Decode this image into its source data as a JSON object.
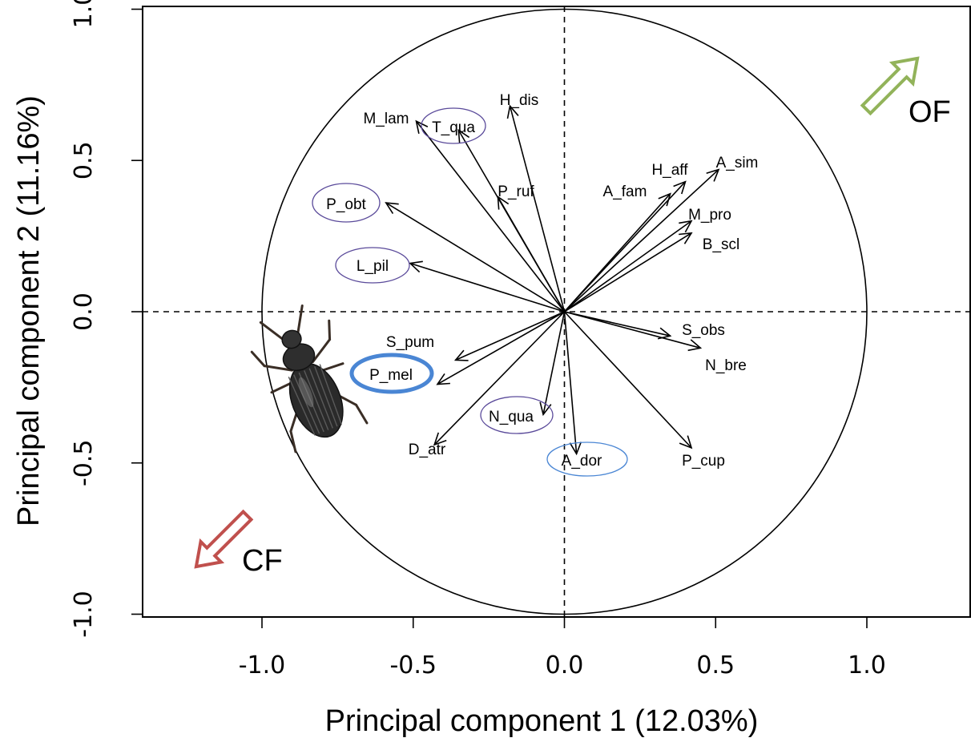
{
  "chart_data": {
    "type": "scatter",
    "subtype": "pca-correlation-circle",
    "xlabel": "Principal component 1 (12.03%)",
    "ylabel": "Principal component 2 (11.16%)",
    "xlim": [
      -1.4,
      1.4
    ],
    "ylim": [
      -1.08,
      1.08
    ],
    "x_ticks": [
      -1.0,
      -0.5,
      0.0,
      0.5,
      1.0
    ],
    "x_tick_labels": [
      "-1.0",
      "-0.5",
      "0.0",
      "0.5",
      "1.0"
    ],
    "y_ticks": [
      -1.0,
      -0.5,
      0.0,
      0.5,
      1.0
    ],
    "y_tick_labels": [
      "-1.0",
      "-0.5",
      "0.0",
      "0.5",
      "1.0"
    ],
    "unit_circle": true,
    "zero_lines": true,
    "vectors": [
      {
        "label": "M_lam",
        "x": -0.49,
        "y": 0.63,
        "circled": null
      },
      {
        "label": "T_qua",
        "x": -0.35,
        "y": 0.6,
        "circled": "purple"
      },
      {
        "label": "H_dis",
        "x": -0.18,
        "y": 0.68,
        "circled": null
      },
      {
        "label": "P_ruf",
        "x": -0.22,
        "y": 0.38,
        "circled": null
      },
      {
        "label": "P_obt",
        "x": -0.59,
        "y": 0.36,
        "circled": "purple"
      },
      {
        "label": "L_pil",
        "x": -0.51,
        "y": 0.16,
        "circled": "purple"
      },
      {
        "label": "S_pum",
        "x": -0.36,
        "y": -0.16,
        "circled": null
      },
      {
        "label": "P_mel",
        "x": -0.42,
        "y": -0.24,
        "circled": "blue-bold"
      },
      {
        "label": "D_atr",
        "x": -0.43,
        "y": -0.44,
        "circled": null
      },
      {
        "label": "N_qua",
        "x": -0.07,
        "y": -0.34,
        "circled": "purple"
      },
      {
        "label": "A_dor",
        "x": 0.04,
        "y": -0.47,
        "circled": "blue"
      },
      {
        "label": "P_cup",
        "x": 0.42,
        "y": -0.45,
        "circled": null
      },
      {
        "label": "S_obs",
        "x": 0.35,
        "y": -0.08,
        "circled": null
      },
      {
        "label": "N_bre",
        "x": 0.45,
        "y": -0.12,
        "circled": null
      },
      {
        "label": "B_scl",
        "x": 0.42,
        "y": 0.26,
        "circled": null
      },
      {
        "label": "M_pro",
        "x": 0.42,
        "y": 0.3,
        "circled": null
      },
      {
        "label": "A_fam",
        "x": 0.35,
        "y": 0.39,
        "circled": null
      },
      {
        "label": "H_aff",
        "x": 0.4,
        "y": 0.43,
        "circled": null
      },
      {
        "label": "A_sim",
        "x": 0.51,
        "y": 0.47,
        "circled": null
      }
    ],
    "annotations": [
      {
        "text": "OF",
        "direction": "up-right",
        "color": "#92b35a"
      },
      {
        "text": "CF",
        "direction": "down-left",
        "color": "#c0504d"
      }
    ],
    "image": {
      "subject": "ground beetle",
      "icon": "beetle-icon"
    },
    "colors": {
      "circle_purple": "#5a4a9a",
      "circle_blue": "#4a86d4",
      "circle_blue_bold": "#4a86d4"
    }
  }
}
